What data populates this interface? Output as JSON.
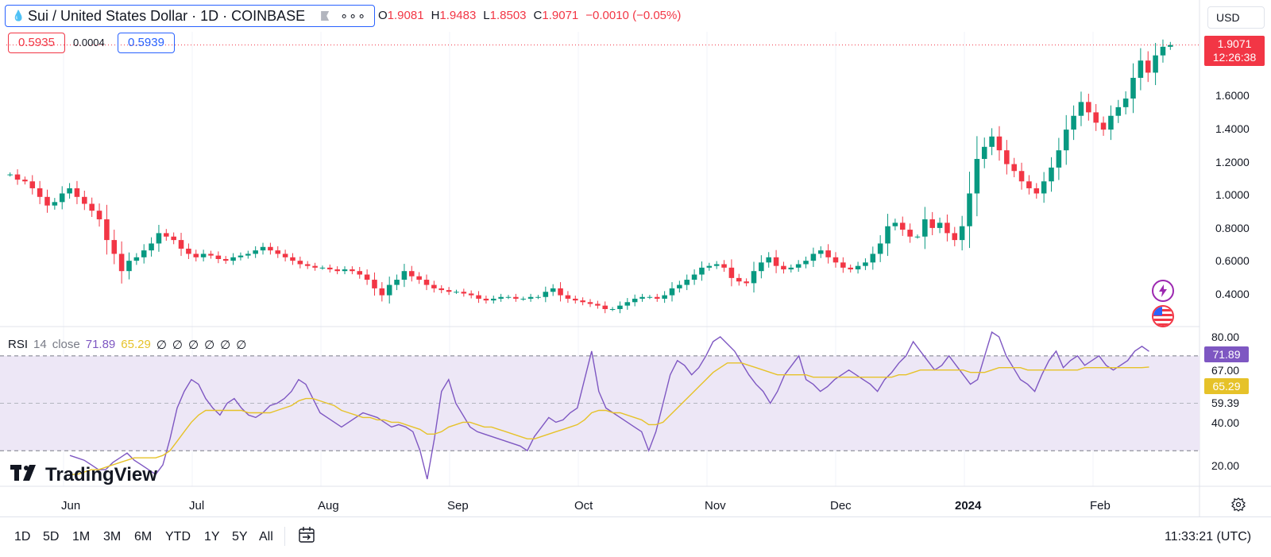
{
  "header": {
    "symbol_title": "Sui / United States Dollar · 1D · COINBASE",
    "more_label": "∘∘∘",
    "ohlc": {
      "o_label": "O",
      "o_value": "1.9081",
      "h_label": "H",
      "h_value": "1.9483",
      "l_label": "L",
      "l_value": "1.8503",
      "c_label": "C",
      "c_value": "1.9071",
      "change": "−0.0010 (−0.05%)"
    },
    "bid": "0.5935",
    "spread": "0.0004",
    "ask": "0.5939",
    "currency": "USD"
  },
  "last_price": {
    "value": "1.9071",
    "countdown": "12:26:38",
    "color": "#f23645"
  },
  "price_axis": [
    "1.6000",
    "1.4000",
    "1.2000",
    "1.0000",
    "0.8000",
    "0.6000",
    "0.4000"
  ],
  "rsi": {
    "title": "RSI",
    "length": "14",
    "source": "close",
    "value": "71.89",
    "ma_value": "65.29",
    "empty_slots": [
      "∅",
      "∅",
      "∅",
      "∅",
      "∅",
      "∅"
    ],
    "axis": [
      "80.00",
      "67.00",
      "59.39",
      "40.00",
      "20.00"
    ],
    "rsi_color": "#7e57c2",
    "ma_color": "#e6c229",
    "tag_ma_color": "#e6c229"
  },
  "time_axis": [
    "Jun",
    "Jul",
    "Aug",
    "Sep",
    "Oct",
    "Nov",
    "Dec",
    "2024",
    "Feb"
  ],
  "ranges": [
    "1D",
    "5D",
    "1M",
    "3M",
    "6M",
    "YTD",
    "1Y",
    "5Y",
    "All"
  ],
  "clock": "11:33:21 (UTC)",
  "brand": "TradingView",
  "colors": {
    "up": "#089981",
    "down": "#f23645",
    "accent": "#2962ff",
    "rsi_band": "#ede7f6",
    "grid": "#f0f3fa"
  },
  "chart_data": [
    {
      "type": "candlestick",
      "title": "Sui / United States Dollar · 1D · COINBASE",
      "ylim": [
        0.32,
        1.95
      ],
      "x_ticks": [
        "Jun",
        "Jul",
        "Aug",
        "Sep",
        "Oct",
        "Nov",
        "Dec",
        "2024",
        "Feb"
      ],
      "series": [
        {
          "name": "close",
          "values": [
            1.16,
            1.13,
            1.12,
            1.08,
            1.03,
            0.98,
            1.0,
            1.05,
            1.08,
            1.03,
            0.99,
            0.95,
            0.9,
            0.78,
            0.7,
            0.6,
            0.66,
            0.68,
            0.72,
            0.76,
            0.82,
            0.8,
            0.78,
            0.73,
            0.7,
            0.68,
            0.7,
            0.69,
            0.67,
            0.66,
            0.68,
            0.69,
            0.7,
            0.72,
            0.74,
            0.72,
            0.7,
            0.68,
            0.66,
            0.64,
            0.63,
            0.62,
            0.62,
            0.61,
            0.6,
            0.61,
            0.6,
            0.58,
            0.55,
            0.5,
            0.46,
            0.52,
            0.55,
            0.6,
            0.57,
            0.55,
            0.52,
            0.5,
            0.49,
            0.48,
            0.48,
            0.47,
            0.46,
            0.44,
            0.43,
            0.44,
            0.45,
            0.45,
            0.44,
            0.44,
            0.45,
            0.45,
            0.48,
            0.5,
            0.46,
            0.44,
            0.43,
            0.42,
            0.41,
            0.4,
            0.38,
            0.38,
            0.4,
            0.42,
            0.44,
            0.45,
            0.45,
            0.44,
            0.46,
            0.5,
            0.52,
            0.55,
            0.58,
            0.62,
            0.63,
            0.64,
            0.62,
            0.56,
            0.54,
            0.53,
            0.6,
            0.65,
            0.68,
            0.63,
            0.61,
            0.62,
            0.64,
            0.66,
            0.7,
            0.72,
            0.68,
            0.65,
            0.62,
            0.61,
            0.63,
            0.65,
            0.7,
            0.76,
            0.86,
            0.88,
            0.84,
            0.8,
            0.8,
            0.9,
            0.85,
            0.88,
            0.82,
            0.78,
            0.86,
            1.05,
            1.25,
            1.32,
            1.38,
            1.3,
            1.22,
            1.18,
            1.12,
            1.08,
            1.05,
            1.12,
            1.2,
            1.3,
            1.42,
            1.5,
            1.58,
            1.52,
            1.46,
            1.42,
            1.5,
            1.55,
            1.6,
            1.72,
            1.82,
            1.75,
            1.85,
            1.9,
            1.91
          ]
        }
      ]
    },
    {
      "type": "line",
      "title": "RSI 14 close",
      "ylim": [
        15,
        82
      ],
      "reference_lines": [
        70,
        30
      ],
      "series": [
        {
          "name": "RSI",
          "values": [
            28,
            27,
            26,
            24,
            22,
            22,
            25,
            27,
            29,
            26,
            24,
            22,
            20,
            24,
            35,
            48,
            55,
            60,
            58,
            52,
            48,
            45,
            50,
            52,
            48,
            45,
            44,
            46,
            49,
            50,
            52,
            55,
            60,
            58,
            52,
            46,
            44,
            42,
            40,
            42,
            44,
            46,
            45,
            44,
            42,
            40,
            41,
            40,
            38,
            30,
            18,
            35,
            55,
            60,
            50,
            45,
            40,
            38,
            37,
            36,
            35,
            34,
            33,
            32,
            30,
            36,
            40,
            44,
            42,
            43,
            46,
            48,
            60,
            72,
            55,
            48,
            46,
            44,
            42,
            40,
            38,
            30,
            38,
            50,
            62,
            68,
            66,
            62,
            65,
            70,
            76,
            78,
            75,
            72,
            67,
            62,
            58,
            55,
            50,
            55,
            62,
            66,
            70,
            60,
            58,
            55,
            57,
            60,
            62,
            64,
            62,
            60,
            58,
            55,
            60,
            63,
            67,
            70,
            76,
            72,
            68,
            64,
            66,
            70,
            66,
            62,
            58,
            60,
            70,
            80,
            78,
            70,
            65,
            60,
            58,
            55,
            62,
            68,
            72,
            65,
            68,
            70,
            66,
            68,
            70,
            66,
            64,
            66,
            68,
            72,
            74,
            71.89
          ]
        },
        {
          "name": "MA",
          "values": [
            20,
            20,
            21,
            22,
            22,
            23,
            24,
            25,
            26,
            27,
            27,
            27,
            27,
            28,
            30,
            34,
            38,
            42,
            45,
            47,
            47,
            47,
            47,
            47,
            47,
            46,
            46,
            46,
            46,
            47,
            48,
            49,
            51,
            52,
            52,
            51,
            50,
            49,
            47,
            46,
            45,
            44,
            44,
            43,
            43,
            42,
            42,
            41,
            40,
            39,
            37,
            37,
            38,
            40,
            41,
            42,
            42,
            41,
            40,
            40,
            39,
            38,
            37,
            36,
            35,
            35,
            36,
            37,
            38,
            39,
            40,
            41,
            43,
            46,
            47,
            47,
            46,
            46,
            45,
            44,
            43,
            41,
            41,
            42,
            45,
            48,
            51,
            54,
            57,
            60,
            63,
            65,
            67,
            67,
            67,
            66,
            65,
            64,
            63,
            62,
            62,
            62,
            62,
            62,
            61,
            61,
            61,
            61,
            61,
            61,
            61,
            61,
            61,
            61,
            61,
            61,
            62,
            62,
            63,
            64,
            64,
            64,
            64,
            64,
            64,
            64,
            63,
            63,
            63,
            64,
            65,
            65,
            65,
            65,
            64,
            64,
            64,
            64,
            64,
            64,
            64,
            64,
            65,
            65,
            65,
            65,
            65,
            65,
            65,
            65,
            65,
            65.29
          ]
        }
      ]
    }
  ]
}
